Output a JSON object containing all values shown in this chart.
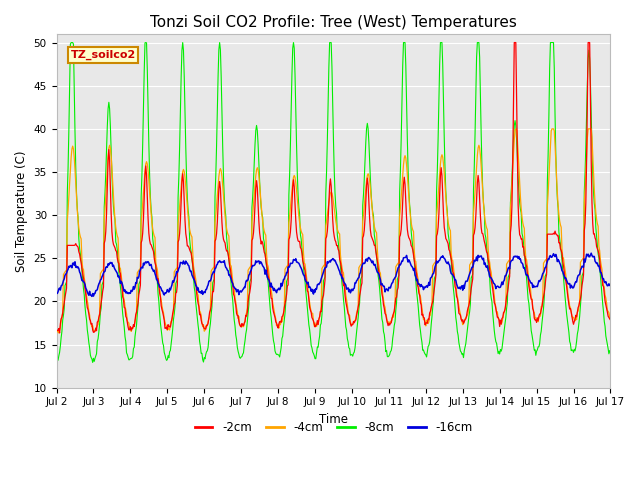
{
  "title": "Tonzi Soil CO2 Profile: Tree (West) Temperatures",
  "xlabel": "Time",
  "ylabel": "Soil Temperature (C)",
  "ylim": [
    10,
    51
  ],
  "yticks": [
    10,
    15,
    20,
    25,
    30,
    35,
    40,
    45,
    50
  ],
  "legend_label": "TZ_soilco2",
  "series_labels": [
    "-2cm",
    "-4cm",
    "-8cm",
    "-16cm"
  ],
  "series_colors": [
    "#ff0000",
    "#ffa500",
    "#00ee00",
    "#0000dd"
  ],
  "background_color": "#e8e8e8",
  "title_fontsize": 11,
  "xtick_days": [
    2,
    3,
    4,
    5,
    6,
    7,
    8,
    9,
    10,
    11,
    12,
    13,
    14,
    15,
    16,
    17
  ],
  "figsize": [
    6.4,
    4.8
  ],
  "dpi": 100
}
